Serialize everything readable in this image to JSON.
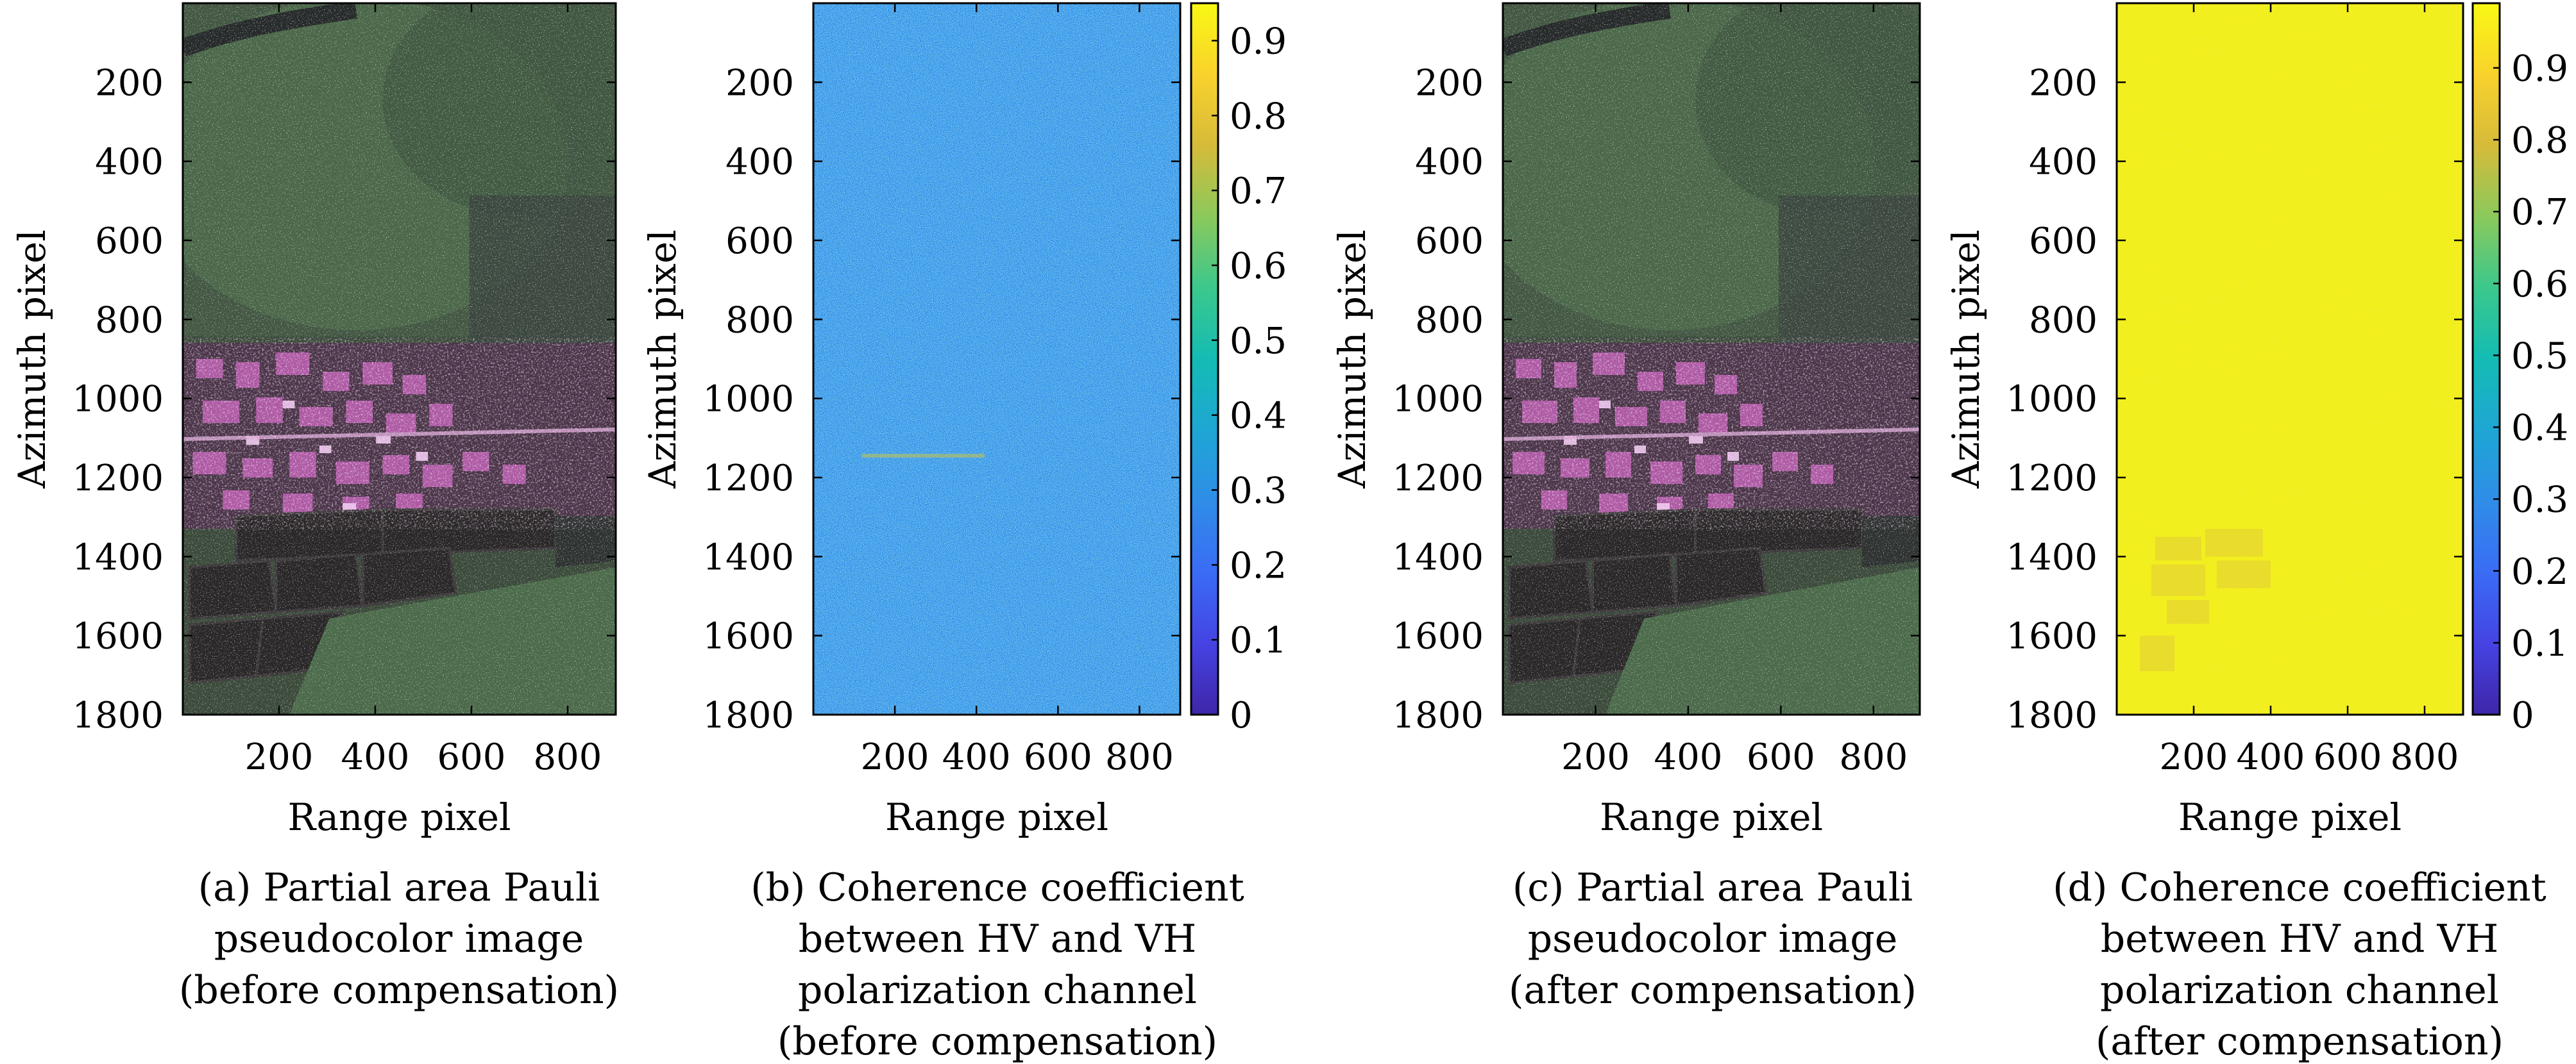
{
  "figure": {
    "panels": [
      {
        "id": "a",
        "kind": "image",
        "xlabel": "Range pixel",
        "ylabel": "Azimuth pixel",
        "caption_lines": [
          "(a) Partial area Pauli",
          "pseudocolor image",
          "(before compensation)"
        ],
        "xticks": [
          200,
          400,
          600,
          800
        ],
        "yticks": [
          200,
          400,
          600,
          800,
          1000,
          1200,
          1400,
          1600,
          1800
        ]
      },
      {
        "id": "b",
        "kind": "coherence",
        "xlabel": "Range pixel",
        "ylabel": "Azimuth pixel",
        "caption_lines": [
          "(b) Coherence coefficient",
          "between HV and VH",
          "polarization channel",
          "(before compensation)"
        ],
        "xticks": [
          200,
          400,
          600,
          800
        ],
        "yticks": [
          200,
          400,
          600,
          800,
          1000,
          1200,
          1400,
          1600,
          1800
        ],
        "colorbar_ticks": [
          "0",
          "0.1",
          "0.2",
          "0.3",
          "0.4",
          "0.5",
          "0.6",
          "0.7",
          "0.8",
          "0.9"
        ]
      },
      {
        "id": "c",
        "kind": "image",
        "xlabel": "Range pixel",
        "ylabel": "Azimuth pixel",
        "caption_lines": [
          "(c) Partial area Pauli",
          "pseudocolor image",
          "(after compensation)"
        ],
        "xticks": [
          200,
          400,
          600,
          800
        ],
        "yticks": [
          200,
          400,
          600,
          800,
          1000,
          1200,
          1400,
          1600,
          1800
        ]
      },
      {
        "id": "d",
        "kind": "coherence",
        "xlabel": "Range pixel",
        "ylabel": "Azimuth pixel",
        "caption_lines": [
          "(d) Coherence coefficient",
          "between HV and VH",
          "polarization channel",
          "(after compensation)"
        ],
        "xticks": [
          200,
          400,
          600,
          800
        ],
        "yticks": [
          200,
          400,
          600,
          800,
          1000,
          1200,
          1400,
          1600,
          1800
        ],
        "colorbar_ticks": [
          "0",
          "0.1",
          "0.2",
          "0.3",
          "0.4",
          "0.5",
          "0.6",
          "0.7",
          "0.8",
          "0.9"
        ]
      }
    ]
  },
  "chart_data": [
    {
      "type": "heatmap",
      "title": "(a) Partial area Pauli pseudocolor image (before compensation)",
      "xlabel": "Range pixel",
      "ylabel": "Azimuth pixel",
      "xlim": [
        0,
        900
      ],
      "ylim": [
        1800,
        0
      ],
      "xticks": [
        200,
        400,
        600,
        800
      ],
      "yticks": [
        200,
        400,
        600,
        800,
        1000,
        1200,
        1400,
        1600,
        1800
      ],
      "content": "Pauli RGB SAR image: vegetation (green) at top, bright magenta built-up area around azimuth 850-1250, dark field parcels lower-left, green fields lower-right"
    },
    {
      "type": "heatmap",
      "title": "(b) Coherence coefficient between HV and VH polarization channel (before compensation)",
      "xlabel": "Range pixel",
      "ylabel": "Azimuth pixel",
      "xlim": [
        0,
        900
      ],
      "ylim": [
        1800,
        0
      ],
      "xticks": [
        200,
        400,
        600,
        800
      ],
      "yticks": [
        200,
        400,
        600,
        800,
        1000,
        1200,
        1400,
        1600,
        1800
      ],
      "colorbar": {
        "range": [
          0,
          0.95
        ],
        "ticks": [
          0,
          0.1,
          0.2,
          0.3,
          0.4,
          0.5,
          0.6,
          0.7,
          0.8,
          0.9
        ],
        "colormap": "parula"
      },
      "typical_value": 0.3
    },
    {
      "type": "heatmap",
      "title": "(c) Partial area Pauli pseudocolor image (after compensation)",
      "xlabel": "Range pixel",
      "ylabel": "Azimuth pixel",
      "xlim": [
        0,
        900
      ],
      "ylim": [
        1800,
        0
      ],
      "xticks": [
        200,
        400,
        600,
        800
      ],
      "yticks": [
        200,
        400,
        600,
        800,
        1000,
        1200,
        1400,
        1600,
        1800
      ]
    },
    {
      "type": "heatmap",
      "title": "(d) Coherence coefficient between HV and VH polarization channel (after compensation)",
      "xlabel": "Range pixel",
      "ylabel": "Azimuth pixel",
      "xlim": [
        0,
        900
      ],
      "ylim": [
        1800,
        0
      ],
      "xticks": [
        200,
        400,
        600,
        800
      ],
      "yticks": [
        200,
        400,
        600,
        800,
        1000,
        1200,
        1400,
        1600,
        1800
      ],
      "colorbar": {
        "range": [
          0,
          0.99
        ],
        "ticks": [
          0,
          0.1,
          0.2,
          0.3,
          0.4,
          0.5,
          0.6,
          0.7,
          0.8,
          0.9
        ],
        "colormap": "parula"
      },
      "typical_value": 0.99
    }
  ]
}
